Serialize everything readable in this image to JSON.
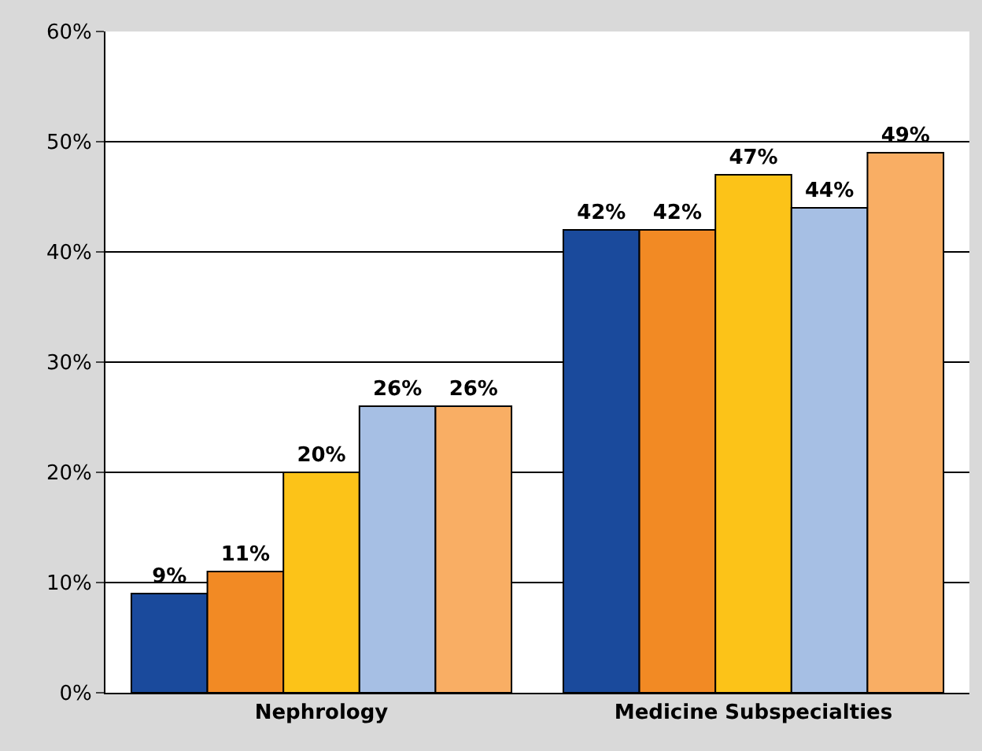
{
  "chart_data": {
    "type": "bar",
    "categories": [
      "Nephrology",
      "Medicine Subspecialties"
    ],
    "series": [
      {
        "color": "#1a4a9c",
        "values": [
          9,
          42
        ],
        "value_labels": [
          "9%",
          "42%"
        ]
      },
      {
        "color": "#f28a24",
        "values": [
          11,
          42
        ],
        "value_labels": [
          "11%",
          "42%"
        ]
      },
      {
        "color": "#fcc318",
        "values": [
          20,
          47
        ],
        "value_labels": [
          "20%",
          "47%"
        ]
      },
      {
        "color": "#a6bfe4",
        "values": [
          26,
          44
        ],
        "value_labels": [
          "26%",
          "44%"
        ]
      },
      {
        "color": "#f9ae64",
        "values": [
          26,
          49
        ],
        "value_labels": [
          "26%",
          "49%"
        ]
      }
    ],
    "ylim": [
      0,
      60
    ],
    "yticks": [
      {
        "value": 0,
        "label": "0%"
      },
      {
        "value": 10,
        "label": "10%"
      },
      {
        "value": 20,
        "label": "20%"
      },
      {
        "value": 30,
        "label": "30%"
      },
      {
        "value": 40,
        "label": "40%"
      },
      {
        "value": 50,
        "label": "50%"
      },
      {
        "value": 60,
        "label": "60%"
      }
    ],
    "grid": "y"
  }
}
